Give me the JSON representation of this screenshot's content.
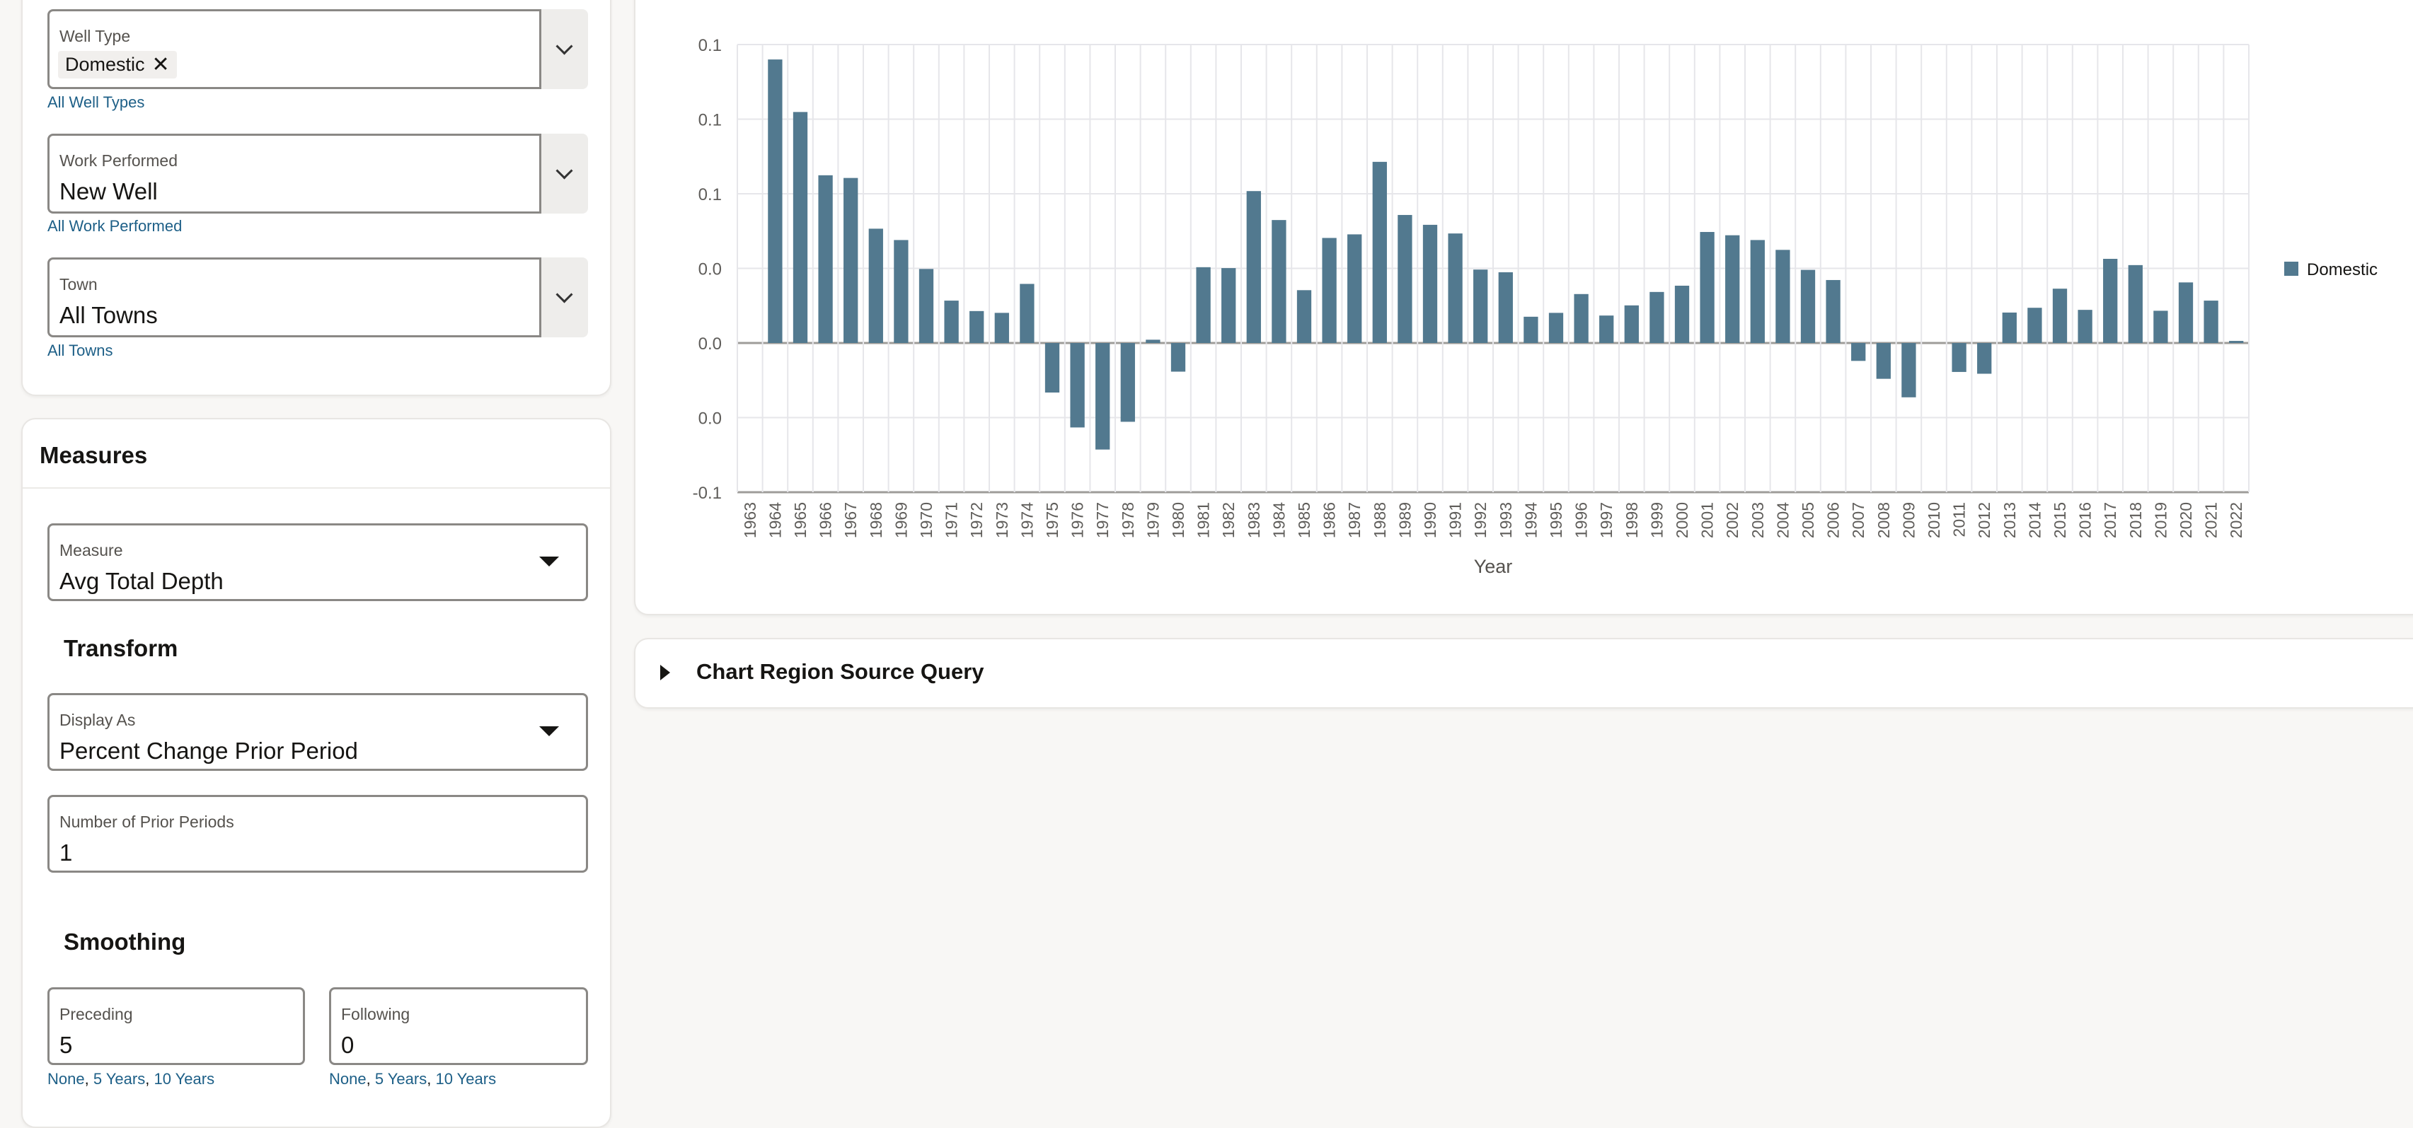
{
  "filters": {
    "well_type": {
      "label": "Well Type",
      "chips": [
        "Domestic"
      ],
      "link": "All Well Types"
    },
    "work_performed": {
      "label": "Work Performed",
      "value": "New Well",
      "link": "All Work Performed"
    },
    "town": {
      "label": "Town",
      "value": "All Towns",
      "link": "All Towns"
    }
  },
  "measures": {
    "title": "Measures",
    "measure": {
      "label": "Measure",
      "value": "Avg Total Depth"
    },
    "transform_heading": "Transform",
    "display_as": {
      "label": "Display As",
      "value": "Percent Change Prior Period"
    },
    "prior_periods": {
      "label": "Number of Prior Periods",
      "value": "1"
    },
    "smoothing_heading": "Smoothing",
    "preceding": {
      "label": "Preceding",
      "value": "5",
      "links": [
        "None",
        "5 Years",
        "10 Years"
      ]
    },
    "following": {
      "label": "Following",
      "value": "0",
      "links": [
        "None",
        "5 Years",
        "10 Years"
      ]
    }
  },
  "query_region": {
    "title": "Chart Region Source Query"
  },
  "chart_data": {
    "type": "bar",
    "xlabel": "Year",
    "ylabel": "",
    "ylim": [
      -0.05,
      0.1
    ],
    "yticks": [
      -0.05,
      -0.025,
      0,
      0.025,
      0.05,
      0.075,
      0.1
    ],
    "ytick_labels": [
      "-0.1",
      "0.0",
      "0.0",
      "0.0",
      "0.1",
      "0.1",
      "0.1"
    ],
    "grid": true,
    "legend_position": "right",
    "bar_color": "#52798f",
    "categories": [
      "1963",
      "1964",
      "1965",
      "1966",
      "1967",
      "1968",
      "1969",
      "1970",
      "1971",
      "1972",
      "1973",
      "1974",
      "1975",
      "1976",
      "1977",
      "1978",
      "1979",
      "1980",
      "1981",
      "1982",
      "1983",
      "1984",
      "1985",
      "1986",
      "1987",
      "1988",
      "1989",
      "1990",
      "1991",
      "1992",
      "1993",
      "1994",
      "1995",
      "1996",
      "1997",
      "1998",
      "1999",
      "2000",
      "2001",
      "2002",
      "2003",
      "2004",
      "2005",
      "2006",
      "2007",
      "2008",
      "2009",
      "2010",
      "2011",
      "2012",
      "2013",
      "2014",
      "2015",
      "2016",
      "2017",
      "2018",
      "2019",
      "2020",
      "2021",
      "2022"
    ],
    "series": [
      {
        "name": "Domestic",
        "values": [
          null,
          0.095,
          0.0774,
          0.0562,
          0.0553,
          0.0383,
          0.0345,
          0.0248,
          0.0142,
          0.0107,
          0.0101,
          0.0198,
          -0.0166,
          -0.0283,
          -0.0357,
          -0.0264,
          0.0011,
          -0.0096,
          0.0254,
          0.0251,
          0.0509,
          0.0412,
          0.0177,
          0.0352,
          0.0364,
          0.0607,
          0.0429,
          0.0396,
          0.0367,
          0.0246,
          0.0237,
          0.0088,
          0.0101,
          0.0164,
          0.0092,
          0.0126,
          0.0171,
          0.0192,
          0.0372,
          0.0361,
          0.0345,
          0.0312,
          0.0245,
          0.0211,
          -0.006,
          -0.012,
          -0.0182,
          null,
          -0.0097,
          -0.0103,
          0.0102,
          0.0118,
          0.0182,
          0.0111,
          0.0282,
          0.0261,
          0.0108,
          0.0203,
          0.0142,
          0.0007
        ]
      }
    ]
  }
}
